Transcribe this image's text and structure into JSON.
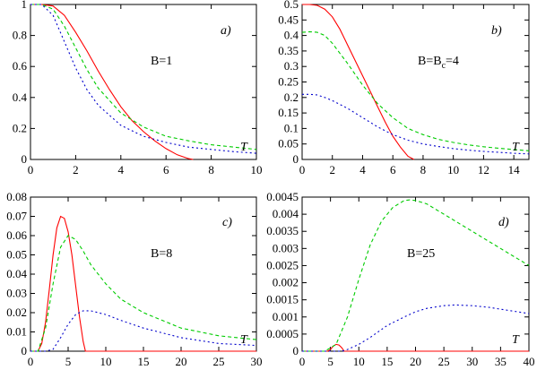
{
  "chart_data": [
    {
      "type": "line",
      "panel_label": "a)",
      "annotation": "B=1",
      "xlabel": "T",
      "xlim": [
        0,
        10
      ],
      "ylim": [
        0,
        1
      ],
      "xticks": [
        0,
        2,
        4,
        6,
        8,
        10
      ],
      "yticks": [
        0,
        0.2,
        0.4,
        0.6,
        0.8,
        1
      ],
      "series": [
        {
          "color": "#ff0000",
          "dash": "",
          "x": [
            0,
            0.5,
            1,
            1.5,
            2,
            2.5,
            3,
            3.5,
            4,
            4.5,
            5,
            5.5,
            6,
            6.5,
            7,
            7.2
          ],
          "y": [
            1,
            1,
            0.99,
            0.93,
            0.82,
            0.7,
            0.57,
            0.45,
            0.34,
            0.25,
            0.18,
            0.12,
            0.07,
            0.03,
            0.005,
            0
          ]
        },
        {
          "color": "#00cc00",
          "dash": "4,3",
          "x": [
            0,
            0.5,
            1,
            1.5,
            2,
            2.5,
            3,
            4,
            5,
            6,
            7,
            8,
            9,
            10
          ],
          "y": [
            1,
            1,
            0.97,
            0.86,
            0.72,
            0.58,
            0.46,
            0.3,
            0.21,
            0.15,
            0.12,
            0.095,
            0.08,
            0.065
          ]
        },
        {
          "color": "#0000cc",
          "dash": "2,3",
          "x": [
            0,
            0.5,
            1,
            1.5,
            2,
            2.5,
            3,
            4,
            5,
            6,
            7,
            8,
            9,
            10
          ],
          "y": [
            1,
            1,
            0.93,
            0.76,
            0.59,
            0.45,
            0.35,
            0.22,
            0.15,
            0.11,
            0.08,
            0.065,
            0.05,
            0.04
          ]
        }
      ]
    },
    {
      "type": "line",
      "panel_label": "b)",
      "annotation": "B=B",
      "annotation_sub": "c",
      "annotation_suffix": "=4",
      "xlabel": "T",
      "xlim": [
        0,
        15
      ],
      "ylim": [
        0,
        0.5
      ],
      "xticks": [
        0,
        2,
        4,
        6,
        8,
        10,
        12,
        14
      ],
      "yticks": [
        0,
        0.05,
        0.1,
        0.15,
        0.2,
        0.25,
        0.3,
        0.35,
        0.4,
        0.45,
        0.5
      ],
      "series": [
        {
          "color": "#ff0000",
          "dash": "",
          "x": [
            0,
            0.5,
            1,
            1.5,
            2,
            2.5,
            3,
            3.5,
            4,
            4.5,
            5,
            5.5,
            6,
            6.5,
            7,
            7.4
          ],
          "y": [
            0.5,
            0.5,
            0.497,
            0.485,
            0.46,
            0.42,
            0.37,
            0.32,
            0.27,
            0.22,
            0.17,
            0.12,
            0.075,
            0.04,
            0.01,
            0
          ]
        },
        {
          "color": "#00cc00",
          "dash": "4,3",
          "x": [
            0,
            0.5,
            1,
            1.5,
            2,
            3,
            4,
            5,
            6,
            7,
            8,
            9,
            10,
            11,
            12,
            13,
            14,
            15
          ],
          "y": [
            0.41,
            0.412,
            0.41,
            0.4,
            0.375,
            0.31,
            0.24,
            0.18,
            0.135,
            0.1,
            0.08,
            0.065,
            0.055,
            0.047,
            0.041,
            0.036,
            0.032,
            0.028
          ]
        },
        {
          "color": "#0000cc",
          "dash": "2,3",
          "x": [
            0,
            0.5,
            1,
            1.5,
            2,
            3,
            4,
            5,
            6,
            7,
            8,
            9,
            10,
            11,
            12,
            13,
            14,
            15
          ],
          "y": [
            0.21,
            0.21,
            0.208,
            0.2,
            0.19,
            0.165,
            0.135,
            0.105,
            0.08,
            0.062,
            0.05,
            0.042,
            0.035,
            0.03,
            0.026,
            0.023,
            0.02,
            0.018
          ]
        }
      ]
    },
    {
      "type": "line",
      "panel_label": "c)",
      "annotation": "B=8",
      "xlabel": "T",
      "xlim": [
        0,
        30
      ],
      "ylim": [
        0,
        0.08
      ],
      "xticks": [
        0,
        5,
        10,
        15,
        20,
        25,
        30
      ],
      "yticks": [
        0,
        0.01,
        0.02,
        0.03,
        0.04,
        0.05,
        0.06,
        0.07,
        0.08
      ],
      "series": [
        {
          "color": "#ff0000",
          "dash": "",
          "x": [
            0,
            1,
            1.5,
            2,
            2.5,
            3,
            3.5,
            4,
            4.5,
            5,
            5.5,
            6,
            6.5,
            7,
            7.3,
            10,
            20,
            30
          ],
          "y": [
            0,
            0,
            0.004,
            0.015,
            0.032,
            0.05,
            0.064,
            0.07,
            0.069,
            0.062,
            0.05,
            0.034,
            0.018,
            0.005,
            0,
            0,
            0,
            0
          ]
        },
        {
          "color": "#00cc00",
          "dash": "4,3",
          "x": [
            0,
            1,
            2,
            3,
            4,
            5,
            6,
            7,
            8,
            10,
            12,
            15,
            20,
            25,
            30
          ],
          "y": [
            0,
            0.0,
            0.012,
            0.035,
            0.054,
            0.06,
            0.058,
            0.052,
            0.045,
            0.035,
            0.027,
            0.02,
            0.012,
            0.008,
            0.006
          ]
        },
        {
          "color": "#0000cc",
          "dash": "2,3",
          "x": [
            0,
            2,
            3,
            4,
            5,
            6,
            7,
            8,
            10,
            12,
            15,
            20,
            25,
            30
          ],
          "y": [
            0,
            0,
            0.001,
            0.007,
            0.014,
            0.019,
            0.021,
            0.021,
            0.019,
            0.016,
            0.012,
            0.007,
            0.004,
            0.003
          ]
        }
      ]
    },
    {
      "type": "line",
      "panel_label": "d)",
      "annotation": "B=25",
      "xlabel": "T",
      "xlim": [
        0,
        40
      ],
      "ylim": [
        0,
        0.0045
      ],
      "xticks": [
        0,
        5,
        10,
        15,
        20,
        25,
        30,
        35,
        40
      ],
      "yticks": [
        0,
        0.0005,
        0.001,
        0.0015,
        0.002,
        0.0025,
        0.003,
        0.0035,
        0.004,
        0.0045
      ],
      "series": [
        {
          "color": "#ff0000",
          "dash": "",
          "x": [
            0,
            4.5,
            5,
            5.5,
            6,
            6.5,
            7,
            7.4,
            10,
            20,
            30,
            40
          ],
          "y": [
            0,
            0,
            5e-05,
            0.00015,
            0.0002,
            0.00018,
            0.0001,
            0,
            0,
            0,
            0,
            0
          ]
        },
        {
          "color": "#00cc00",
          "dash": "4,3",
          "x": [
            0,
            4,
            6,
            8,
            10,
            12,
            14,
            16,
            18,
            19,
            20,
            22,
            24,
            26,
            28,
            30,
            32,
            34,
            36,
            38,
            40
          ],
          "y": [
            0,
            0,
            0.0002,
            0.001,
            0.0021,
            0.0031,
            0.0038,
            0.0042,
            0.0044,
            0.00442,
            0.0044,
            0.0043,
            0.0041,
            0.0039,
            0.0037,
            0.0035,
            0.0033,
            0.0031,
            0.0029,
            0.0027,
            0.0025
          ]
        },
        {
          "color": "#0000cc",
          "dash": "2,3",
          "x": [
            0,
            7,
            8,
            10,
            12,
            15,
            18,
            20,
            22,
            25,
            27,
            30,
            33,
            36,
            40
          ],
          "y": [
            0,
            0,
            5e-05,
            0.0002,
            0.0004,
            0.00075,
            0.001,
            0.00115,
            0.00125,
            0.00133,
            0.00135,
            0.00133,
            0.00128,
            0.0012,
            0.0011
          ]
        }
      ]
    }
  ]
}
